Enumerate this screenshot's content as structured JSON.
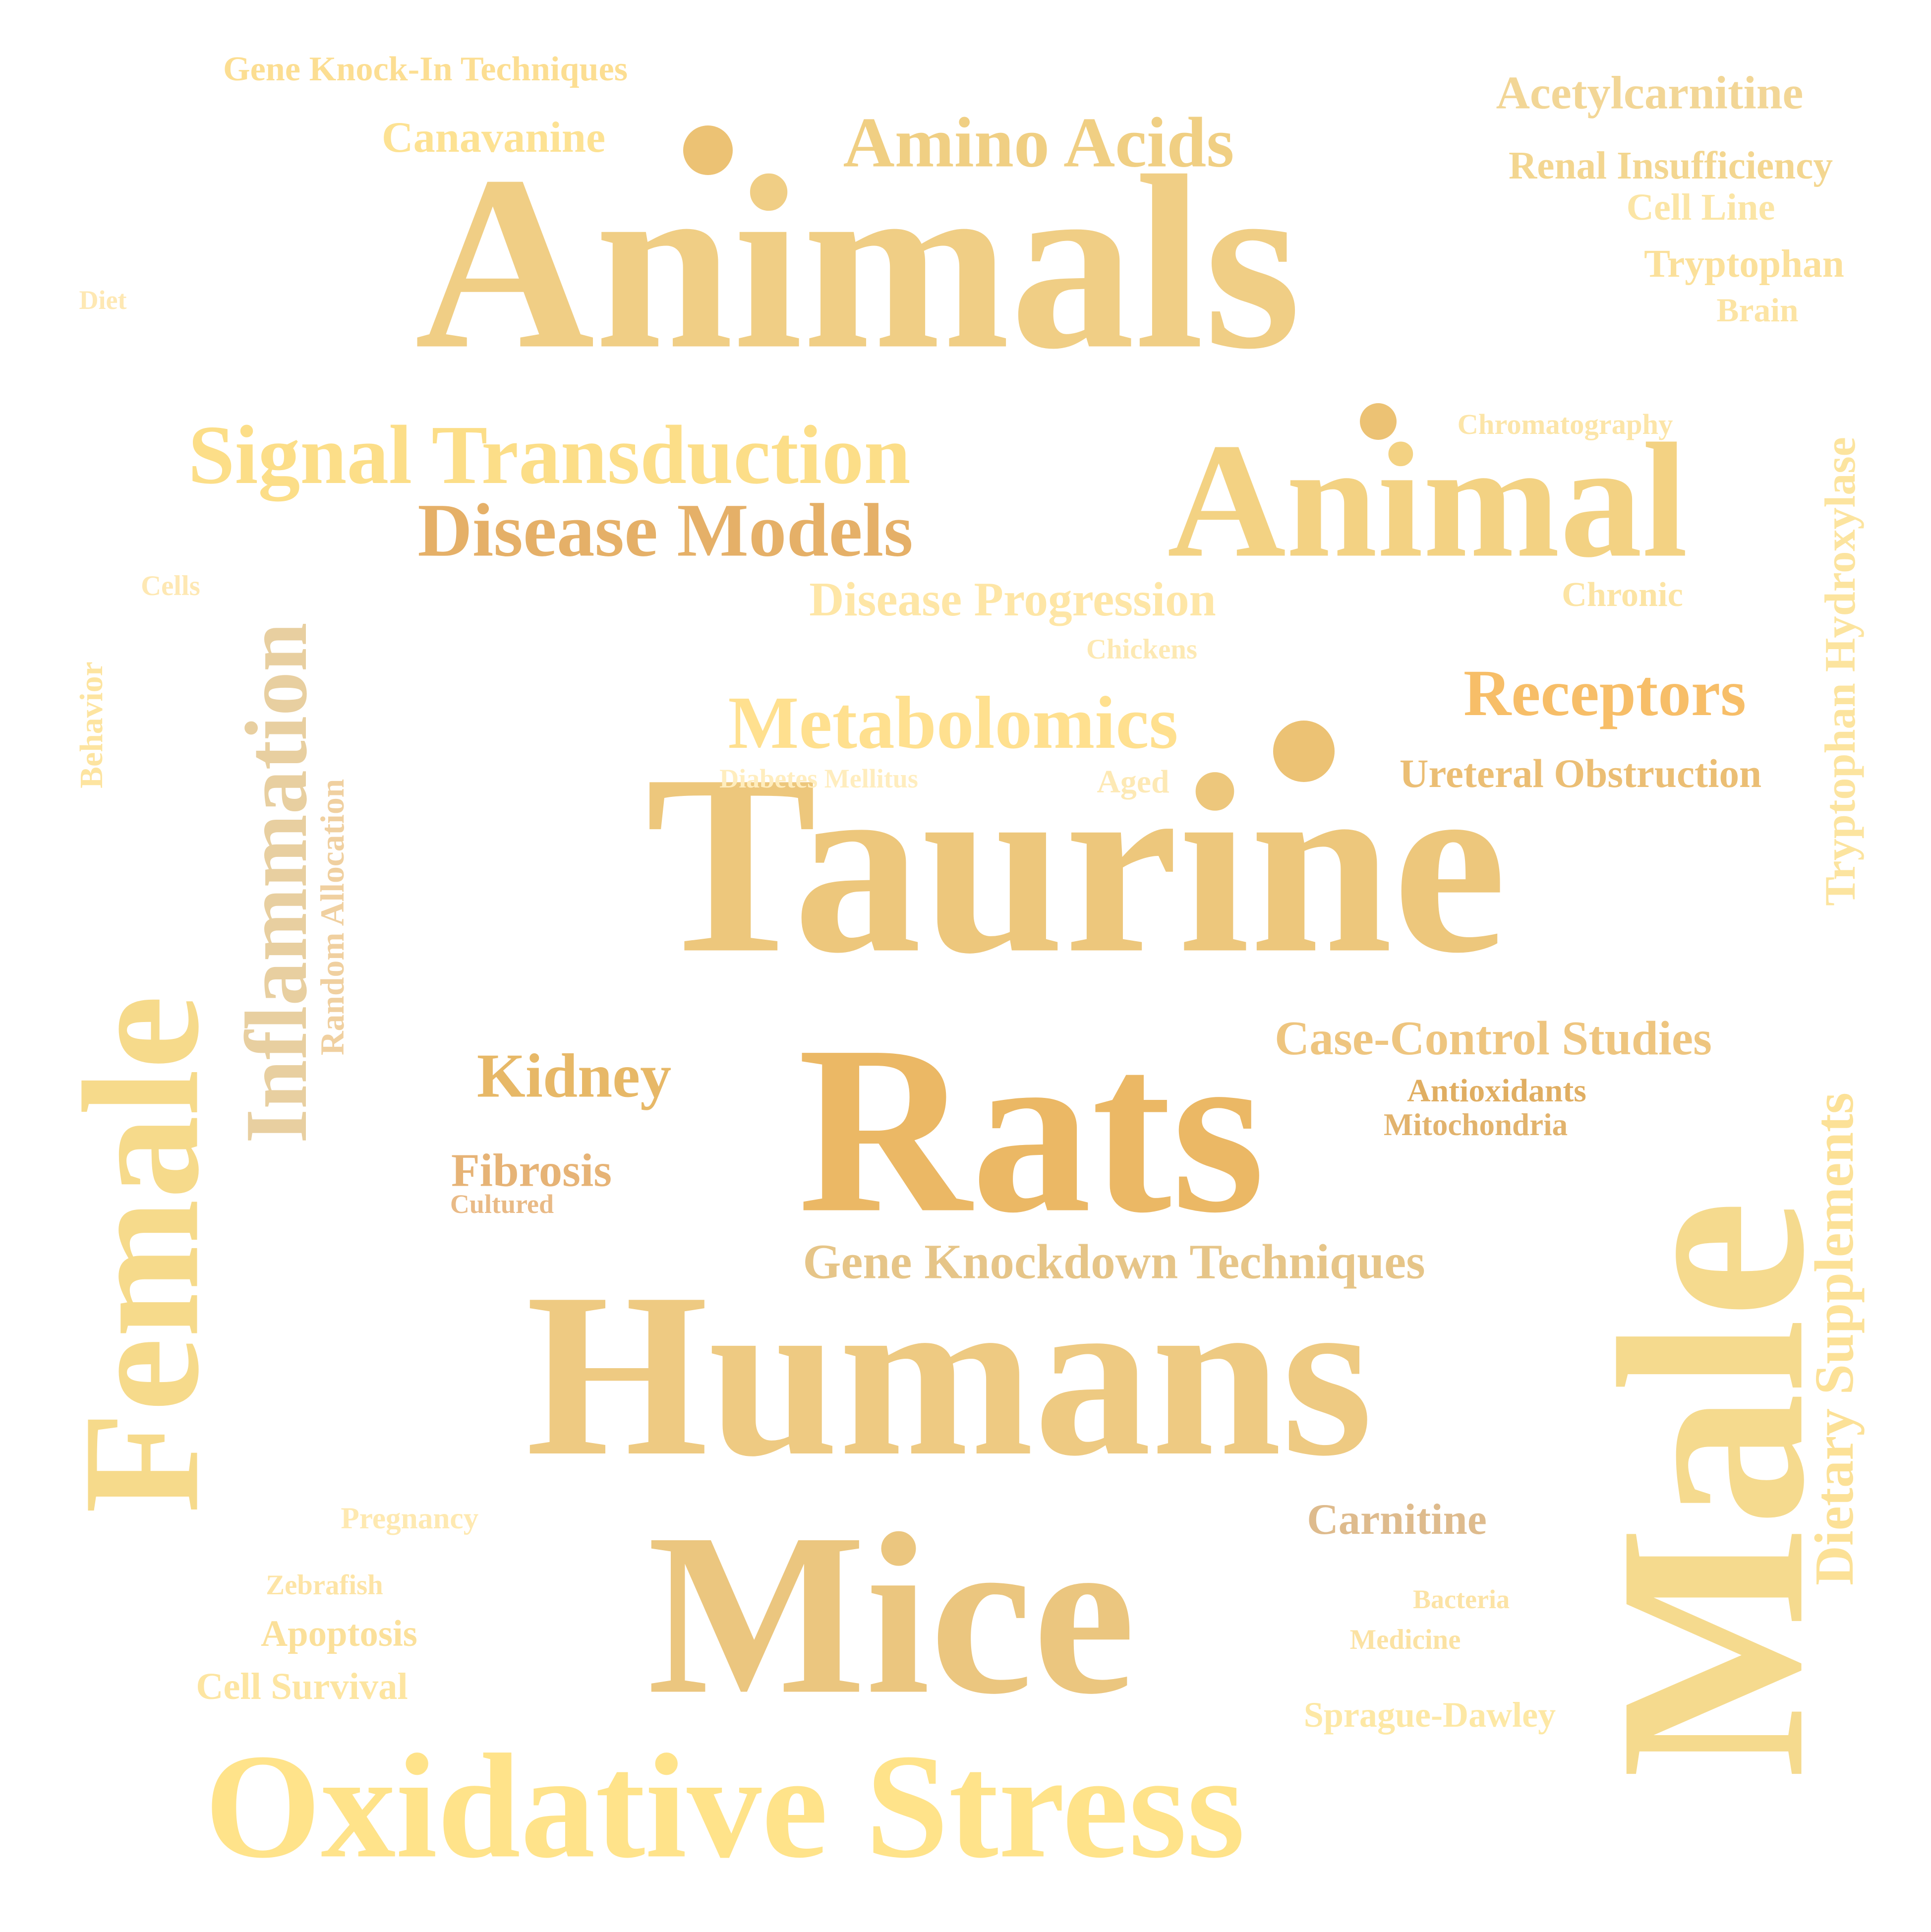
{
  "words": [
    {
      "text": "Animals",
      "color": "#F0CE85"
    },
    {
      "text": "Taurine",
      "color": "#EDC77C"
    },
    {
      "text": "Humans",
      "color": "#EECA82"
    },
    {
      "text": "Male",
      "color": "#F5DA8E"
    },
    {
      "text": "Rats",
      "color": "#EBB865"
    },
    {
      "text": "Female",
      "color": "#F6DA8B"
    },
    {
      "text": "Mice",
      "color": "#EBC67F"
    },
    {
      "text": "Animal",
      "color": "#F3D283"
    },
    {
      "text": "Oxidative Stress",
      "color": "#FFE38A"
    },
    {
      "text": "Signal Transduction",
      "color": "#FCDE88"
    },
    {
      "text": "Inflammation",
      "color": "#E8CFA0"
    },
    {
      "text": "Disease Models",
      "color": "#E5B068"
    },
    {
      "text": "Amino Acids",
      "color": "#F0CF83"
    },
    {
      "text": "Metabolomics",
      "color": "#FFE08F"
    },
    {
      "text": "Receptors",
      "color": "#F7BE68"
    },
    {
      "text": "Kidney",
      "color": "#E7B867"
    },
    {
      "text": "Case-Control Studies",
      "color": "#EEC57F"
    },
    {
      "text": "Gene Knockdown Techniques",
      "color": "#E6C588"
    },
    {
      "text": "Dietary Supplements",
      "color": "#FCE197"
    },
    {
      "text": "Tryptophan Hydroxylase",
      "color": "#FCE49F"
    },
    {
      "text": "Disease Progression",
      "color": "#FEE6A6"
    },
    {
      "text": "Canavanine",
      "color": "#FDE293"
    },
    {
      "text": "Acetylcarnitine",
      "color": "#F2D696"
    },
    {
      "text": "Fibrosis",
      "color": "#E6B376"
    },
    {
      "text": "Carnitine",
      "color": "#DEBB8D"
    },
    {
      "text": "Ureteral Obstruction",
      "color": "#EBBE74"
    },
    {
      "text": "Sprague-Dawley",
      "color": "#FDE8A5"
    },
    {
      "text": "Renal Insufficiency",
      "color": "#F3D690"
    },
    {
      "text": "Tryptophan",
      "color": "#FBE09A"
    },
    {
      "text": "Cell Line",
      "color": "#FBE5A5"
    },
    {
      "text": "Gene Knock-In Techniques",
      "color": "#FCDE92"
    },
    {
      "text": "Apoptosis",
      "color": "#FBE09A"
    },
    {
      "text": "Cell Survival",
      "color": "#FDE5A1"
    },
    {
      "text": "Antioxidants",
      "color": "#E0AE62"
    },
    {
      "text": "Mitochondria",
      "color": "#E2B36D"
    },
    {
      "text": "Chronic",
      "color": "#FCE4A4"
    },
    {
      "text": "Brain",
      "color": "#FCE4A4"
    },
    {
      "text": "Random Allocation",
      "color": "#F0D0A0"
    },
    {
      "text": "Behavior",
      "color": "#FDE4A0"
    },
    {
      "text": "Chromatography",
      "color": "#FCE5A8"
    },
    {
      "text": "Pregnancy",
      "color": "#FEE9B1"
    },
    {
      "text": "Zebrafish",
      "color": "#FDE4A5"
    },
    {
      "text": "Bacteria",
      "color": "#FCE3A5"
    },
    {
      "text": "Medicine",
      "color": "#FBE2A3"
    },
    {
      "text": "Diabetes Mellitus",
      "color": "#FFEDBE"
    },
    {
      "text": "Aged",
      "color": "#FDE9B5"
    },
    {
      "text": "Cultured",
      "color": "#E9BA86"
    },
    {
      "text": "Chickens",
      "color": "#FDE9B3"
    },
    {
      "text": "Cells",
      "color": "#FEE8B3"
    },
    {
      "text": "Diet",
      "color": "#FEE8B3"
    }
  ],
  "dot_color": "#ECC274"
}
